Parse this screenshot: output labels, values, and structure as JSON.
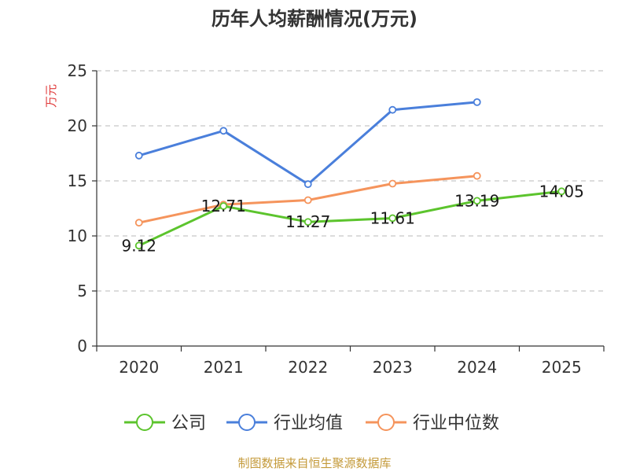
{
  "chart_data": {
    "type": "line",
    "title": "历年人均薪酬情况(万元)",
    "ylabel": "万元",
    "ylim": [
      0,
      25
    ],
    "yticks": [
      0,
      5,
      10,
      15,
      20,
      25
    ],
    "categories": [
      "2020",
      "2021",
      "2022",
      "2023",
      "2024",
      "2025"
    ],
    "grid": true,
    "legend_position": "bottom-center",
    "series": [
      {
        "name": "公司",
        "color": "#5cc42d",
        "values": [
          9.12,
          12.71,
          11.27,
          11.61,
          13.19,
          14.05
        ],
        "labels": [
          "9.12",
          "12.71",
          "11.27",
          "11.61",
          "13.19",
          "14.05"
        ]
      },
      {
        "name": "行业均值",
        "color": "#4a7fdb",
        "values": [
          17.3,
          19.55,
          14.7,
          21.45,
          22.15,
          null
        ]
      },
      {
        "name": "行业中位数",
        "color": "#f5945c",
        "values": [
          11.2,
          12.85,
          13.25,
          14.75,
          15.45,
          null
        ]
      }
    ]
  },
  "source_text": "制图数据来自恒生聚源数据库"
}
